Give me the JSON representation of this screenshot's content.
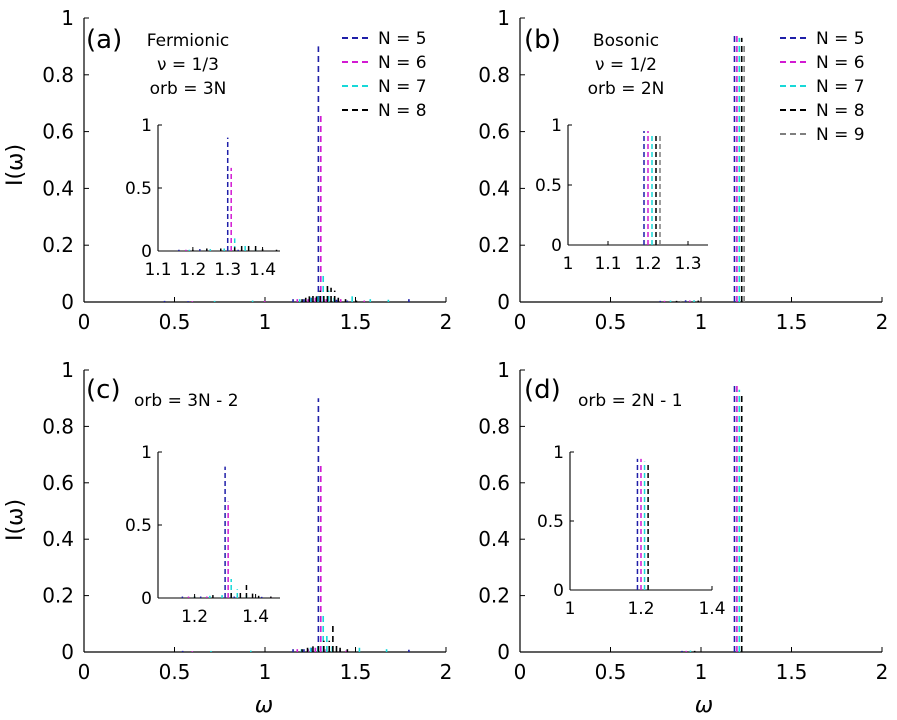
{
  "figure": {
    "ylabel": "I(ω)",
    "xlabel": "ω",
    "colors": {
      "N5": "#1f1fa8",
      "N6": "#d21ad2",
      "N7": "#17d8d8",
      "N8": "#000000",
      "N9": "#7f7f7f"
    }
  },
  "chart_data": [
    {
      "id": "a",
      "type": "line",
      "panel_label": "(a)",
      "annotations": [
        "Fermionic",
        "ν = 1/3",
        "orb = 3N"
      ],
      "xlim": [
        0,
        2
      ],
      "ylim": [
        0,
        1
      ],
      "xticks": [
        "0",
        "0.5",
        "1",
        "1.5",
        "2"
      ],
      "yticks": [
        "0",
        "0.2",
        "0.4",
        "0.6",
        "0.8",
        "1"
      ],
      "legend": [
        "N = 5",
        "N = 6",
        "N = 7",
        "N = 8"
      ],
      "series": [
        {
          "name": "N = 5",
          "x": [
            0.45,
            0.58,
            1.16,
            1.22,
            1.26,
            1.3,
            1.33,
            1.4,
            1.46,
            1.8
          ],
          "y": [
            0.004,
            0.003,
            0.01,
            0.01,
            0.015,
            0.9,
            0.01,
            0.008,
            0.005,
            0.01
          ]
        },
        {
          "name": "N = 6",
          "x": [
            0.6,
            1.0,
            1.18,
            1.24,
            1.28,
            1.31,
            1.34,
            1.42,
            1.55
          ],
          "y": [
            0.003,
            0.004,
            0.01,
            0.01,
            0.015,
            0.66,
            0.01,
            0.01,
            0.005
          ]
        },
        {
          "name": "N = 7",
          "x": [
            0.72,
            0.93,
            1.19,
            1.25,
            1.29,
            1.32,
            1.35,
            1.38,
            1.48,
            1.58,
            1.68
          ],
          "y": [
            0.004,
            0.005,
            0.01,
            0.015,
            0.02,
            0.1,
            0.04,
            0.015,
            0.02,
            0.01,
            0.008
          ]
        },
        {
          "name": "N = 8",
          "x": [
            1.2,
            1.22,
            1.24,
            1.26,
            1.28,
            1.3,
            1.32,
            1.34,
            1.36,
            1.38,
            1.4,
            1.44,
            1.5
          ],
          "y": [
            0.01,
            0.015,
            0.02,
            0.03,
            0.02,
            0.04,
            0.03,
            0.06,
            0.05,
            0.04,
            0.015,
            0.01,
            0.005
          ]
        }
      ],
      "inset": {
        "xlim": [
          1.1,
          1.45
        ],
        "ylim": [
          0,
          1
        ],
        "xticks": [
          "1.1",
          "1.2",
          "1.3",
          "1.4"
        ],
        "yticks": [
          "0",
          "0.5",
          "1"
        ],
        "series": [
          {
            "name": "N = 5",
            "x": [
              1.16,
              1.22,
              1.3,
              1.33
            ],
            "y": [
              0.01,
              0.015,
              0.9,
              0.01
            ]
          },
          {
            "name": "N = 6",
            "x": [
              1.18,
              1.24,
              1.31,
              1.34
            ],
            "y": [
              0.01,
              0.01,
              0.66,
              0.01
            ]
          },
          {
            "name": "N = 7",
            "x": [
              1.19,
              1.25,
              1.29,
              1.32,
              1.35,
              1.38
            ],
            "y": [
              0.01,
              0.015,
              0.02,
              0.1,
              0.04,
              0.015
            ]
          },
          {
            "name": "N = 8",
            "x": [
              1.2,
              1.24,
              1.28,
              1.32,
              1.34,
              1.36,
              1.38,
              1.4,
              1.44
            ],
            "y": [
              0.01,
              0.02,
              0.02,
              0.03,
              0.06,
              0.05,
              0.04,
              0.015,
              0.01
            ]
          }
        ]
      }
    },
    {
      "id": "b",
      "type": "line",
      "panel_label": "(b)",
      "annotations": [
        "Bosonic",
        "ν = 1/2",
        "orb = 2N"
      ],
      "xlim": [
        0,
        2
      ],
      "ylim": [
        0,
        1
      ],
      "xticks": [
        "0",
        "0.5",
        "1",
        "1.5",
        "2"
      ],
      "yticks": [
        "0",
        "0.2",
        "0.4",
        "0.6",
        "0.8",
        "1"
      ],
      "legend": [
        "N = 5",
        "N = 6",
        "N = 7",
        "N = 8",
        "N = 9"
      ],
      "series": [
        {
          "name": "N = 5",
          "x": [
            0.78,
            0.92,
            1.19
          ],
          "y": [
            0.004,
            0.006,
            0.95
          ]
        },
        {
          "name": "N = 6",
          "x": [
            0.8,
            0.94,
            1.2
          ],
          "y": [
            0.004,
            0.005,
            0.95
          ]
        },
        {
          "name": "N = 7",
          "x": [
            0.83,
            0.96,
            1.21
          ],
          "y": [
            0.005,
            0.006,
            0.93
          ]
        },
        {
          "name": "N = 8",
          "x": [
            0.86,
            0.98,
            1.22
          ],
          "y": [
            0.004,
            0.005,
            0.93
          ]
        },
        {
          "name": "N = 9",
          "x": [
            0.88,
            1.0,
            1.23
          ],
          "y": [
            0.004,
            0.004,
            0.91
          ]
        }
      ],
      "inset": {
        "xlim": [
          1.0,
          1.35
        ],
        "ylim": [
          0,
          1
        ],
        "xticks": [
          "1",
          "1.1",
          "1.2",
          "1.3"
        ],
        "yticks": [
          "0",
          "0.5",
          "1"
        ],
        "series": [
          {
            "name": "N = 5",
            "x": [
              1.19
            ],
            "y": [
              0.95
            ]
          },
          {
            "name": "N = 6",
            "x": [
              1.2
            ],
            "y": [
              0.95
            ]
          },
          {
            "name": "N = 7",
            "x": [
              1.21
            ],
            "y": [
              0.93
            ]
          },
          {
            "name": "N = 8",
            "x": [
              1.22
            ],
            "y": [
              0.93
            ]
          },
          {
            "name": "N = 9",
            "x": [
              1.23
            ],
            "y": [
              0.91
            ]
          }
        ]
      }
    },
    {
      "id": "c",
      "type": "line",
      "panel_label": "(c)",
      "annotations": [
        "orb = 3N - 2"
      ],
      "xlim": [
        0,
        2
      ],
      "ylim": [
        0,
        1
      ],
      "xticks": [
        "0",
        "0.5",
        "1",
        "1.5",
        "2"
      ],
      "yticks": [
        "0",
        "0.2",
        "0.4",
        "0.6",
        "0.8",
        "1"
      ],
      "series": [
        {
          "name": "N = 5",
          "x": [
            0.55,
            1.16,
            1.22,
            1.26,
            1.3,
            1.33,
            1.42,
            1.8
          ],
          "y": [
            0.004,
            0.01,
            0.01,
            0.015,
            0.9,
            0.01,
            0.008,
            0.008
          ]
        },
        {
          "name": "N = 6",
          "x": [
            0.6,
            1.18,
            1.24,
            1.28,
            1.31,
            1.34,
            1.45
          ],
          "y": [
            0.003,
            0.01,
            0.01,
            0.015,
            0.66,
            0.01,
            0.005
          ]
        },
        {
          "name": "N = 7",
          "x": [
            0.7,
            0.92,
            1.2,
            1.25,
            1.29,
            1.32,
            1.34,
            1.37,
            1.52,
            1.67
          ],
          "y": [
            0.004,
            0.005,
            0.01,
            0.015,
            0.02,
            0.13,
            0.06,
            0.02,
            0.015,
            0.01
          ]
        },
        {
          "name": "N = 8",
          "x": [
            1.2,
            1.23,
            1.26,
            1.29,
            1.32,
            1.35,
            1.37,
            1.39,
            1.41,
            1.45
          ],
          "y": [
            0.01,
            0.015,
            0.02,
            0.03,
            0.04,
            0.04,
            0.1,
            0.03,
            0.015,
            0.01
          ]
        }
      ],
      "inset": {
        "xlim": [
          1.08,
          1.48
        ],
        "ylim": [
          0,
          1
        ],
        "xticks": [
          "1.2",
          "1.4"
        ],
        "yticks": [
          "0",
          "0.5",
          "1"
        ],
        "series": [
          {
            "name": "N = 5",
            "x": [
              1.16,
              1.22,
              1.3,
              1.33,
              1.42
            ],
            "y": [
              0.01,
              0.01,
              0.9,
              0.01,
              0.008
            ]
          },
          {
            "name": "N = 6",
            "x": [
              1.18,
              1.24,
              1.31,
              1.34,
              1.45
            ],
            "y": [
              0.01,
              0.01,
              0.66,
              0.01,
              0.005
            ]
          },
          {
            "name": "N = 7",
            "x": [
              1.2,
              1.25,
              1.29,
              1.32,
              1.34,
              1.37
            ],
            "y": [
              0.01,
              0.015,
              0.02,
              0.13,
              0.06,
              0.02
            ]
          },
          {
            "name": "N = 8",
            "x": [
              1.2,
              1.26,
              1.32,
              1.35,
              1.37,
              1.39,
              1.41,
              1.45
            ],
            "y": [
              0.01,
              0.02,
              0.04,
              0.04,
              0.1,
              0.03,
              0.015,
              0.01
            ]
          }
        ]
      }
    },
    {
      "id": "d",
      "type": "line",
      "panel_label": "(d)",
      "annotations": [
        "orb = 2N - 1"
      ],
      "xlim": [
        0,
        2
      ],
      "ylim": [
        0,
        1
      ],
      "xticks": [
        "0",
        "0.5",
        "1",
        "1.5",
        "2"
      ],
      "yticks": [
        "0",
        "0.2",
        "0.4",
        "0.6",
        "0.8",
        "1"
      ],
      "series": [
        {
          "name": "N = 5",
          "x": [
            0.9,
            1.19
          ],
          "y": [
            0.004,
            0.95
          ]
        },
        {
          "name": "N = 6",
          "x": [
            0.92,
            1.2
          ],
          "y": [
            0.004,
            0.95
          ]
        },
        {
          "name": "N = 7",
          "x": [
            0.94,
            1.21
          ],
          "y": [
            0.005,
            0.93
          ]
        },
        {
          "name": "N = 8",
          "x": [
            0.96,
            1.22
          ],
          "y": [
            0.004,
            0.91
          ]
        }
      ],
      "inset": {
        "xlim": [
          1.0,
          1.4
        ],
        "ylim": [
          0,
          1
        ],
        "xticks": [
          "1",
          "1.2",
          "1.4"
        ],
        "yticks": [
          "0",
          "0.5",
          "1"
        ],
        "series": [
          {
            "name": "N = 5",
            "x": [
              1.19
            ],
            "y": [
              0.95
            ]
          },
          {
            "name": "N = 6",
            "x": [
              1.2
            ],
            "y": [
              0.95
            ]
          },
          {
            "name": "N = 7",
            "x": [
              1.21
            ],
            "y": [
              0.93
            ]
          },
          {
            "name": "N = 8",
            "x": [
              1.22
            ],
            "y": [
              0.91
            ]
          }
        ]
      }
    }
  ]
}
